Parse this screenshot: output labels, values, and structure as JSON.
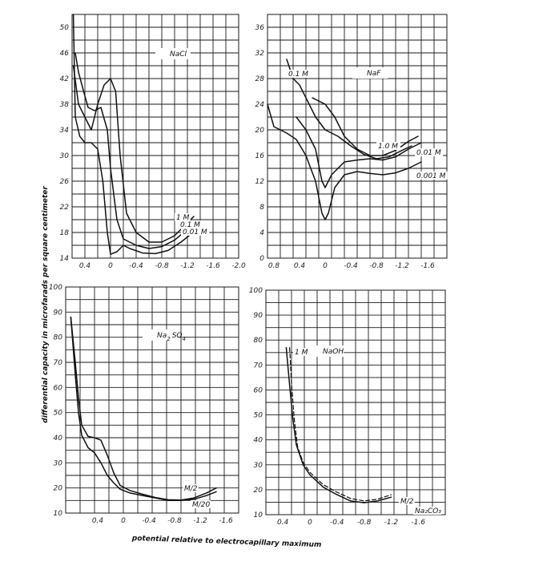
{
  "figure": {
    "ylabel": "differential capacity in microfarads per square centimeter",
    "xlabel": "potential relative to electrocapillary maximum"
  },
  "chart_data": [
    {
      "type": "line",
      "title": "NaCl",
      "xlim": [
        0.6,
        -2.0
      ],
      "ylim": [
        14,
        52
      ],
      "xticks": [
        0.4,
        0,
        -0.4,
        -0.8,
        -1.2,
        -1.6,
        -2.0
      ],
      "xtick_labels": [
        "0.4",
        "0",
        "-0.4",
        "-0.8",
        "-1.2",
        "-1.6",
        "-2.0"
      ],
      "yticks": [
        14,
        18,
        22,
        26,
        30,
        34,
        38,
        42,
        46,
        50
      ],
      "ytick_labels": [
        "14",
        "18",
        "22",
        "26",
        "30",
        "34",
        "38",
        "42",
        "46",
        "50"
      ],
      "series": [
        {
          "name": "1M",
          "points": [
            [
              0.58,
              44
            ],
            [
              0.5,
              38
            ],
            [
              0.4,
              36
            ],
            [
              0.3,
              34
            ],
            [
              0.2,
              38
            ],
            [
              0.1,
              41
            ],
            [
              0.0,
              42
            ],
            [
              -0.08,
              40
            ],
            [
              -0.15,
              30
            ],
            [
              -0.25,
              21
            ],
            [
              -0.4,
              18
            ],
            [
              -0.6,
              16.5
            ],
            [
              -0.8,
              16.5
            ],
            [
              -1.0,
              17.5
            ],
            [
              -1.2,
              19.5
            ],
            [
              -1.3,
              20.5
            ]
          ]
        },
        {
          "name": "0.1M",
          "points": [
            [
              0.55,
              46
            ],
            [
              0.5,
              43
            ],
            [
              0.42,
              40
            ],
            [
              0.35,
              37.5
            ],
            [
              0.25,
              37
            ],
            [
              0.15,
              37.5
            ],
            [
              0.05,
              34
            ],
            [
              0.0,
              28
            ],
            [
              -0.1,
              20
            ],
            [
              -0.2,
              17
            ],
            [
              -0.4,
              16
            ],
            [
              -0.6,
              15.5
            ],
            [
              -0.8,
              15.8
            ],
            [
              -1.0,
              16.8
            ],
            [
              -1.2,
              18.5
            ],
            [
              -1.35,
              19.5
            ]
          ]
        },
        {
          "name": "0.01M",
          "points": [
            [
              0.58,
              52
            ],
            [
              0.55,
              36
            ],
            [
              0.48,
              33
            ],
            [
              0.4,
              32
            ],
            [
              0.3,
              32
            ],
            [
              0.2,
              31
            ],
            [
              0.12,
              26
            ],
            [
              0.05,
              18
            ],
            [
              0.0,
              14.6
            ],
            [
              -0.1,
              15
            ],
            [
              -0.2,
              16
            ],
            [
              -0.3,
              15.5
            ],
            [
              -0.5,
              14.8
            ],
            [
              -0.7,
              14.7
            ],
            [
              -0.9,
              15.2
            ],
            [
              -1.1,
              16.5
            ],
            [
              -1.35,
              18.5
            ]
          ]
        }
      ]
    },
    {
      "type": "line",
      "title": "NaF",
      "xlim": [
        0.9,
        -1.9
      ],
      "ylim": [
        0,
        38
      ],
      "xticks": [
        0.8,
        0.4,
        0,
        -0.4,
        -0.8,
        -1.2,
        -1.6
      ],
      "xtick_labels": [
        "0.8",
        "0.4",
        "0",
        "-0.4",
        "-0.8",
        "-1.2",
        "-1.6"
      ],
      "yticks": [
        0,
        4,
        8,
        12,
        16,
        20,
        24,
        28,
        32,
        36
      ],
      "ytick_labels": [
        "0",
        "4",
        "8",
        "12",
        "16",
        "20",
        "24",
        "28",
        "32",
        "36"
      ],
      "series": [
        {
          "name": "0.1M",
          "points": [
            [
              0.6,
              31
            ],
            [
              0.5,
              28
            ],
            [
              0.4,
              27
            ],
            [
              0.3,
              25
            ],
            [
              0.15,
              22
            ],
            [
              0.0,
              20
            ],
            [
              -0.2,
              19
            ],
            [
              -0.4,
              17.5
            ],
            [
              -0.6,
              16.2
            ],
            [
              -0.8,
              15.5
            ],
            [
              -1.0,
              15.8
            ],
            [
              -1.2,
              16.8
            ],
            [
              -1.35,
              17.5
            ]
          ]
        },
        {
          "name": "1.0M",
          "points": [
            [
              0.2,
              25
            ],
            [
              0.0,
              24
            ],
            [
              -0.15,
              22
            ],
            [
              -0.3,
              19
            ],
            [
              -0.5,
              17
            ],
            [
              -0.7,
              16
            ],
            [
              -0.9,
              16
            ],
            [
              -1.1,
              16.8
            ],
            [
              -1.3,
              18.2
            ],
            [
              -1.45,
              19
            ]
          ]
        },
        {
          "name": "0.01M",
          "points": [
            [
              0.45,
              22
            ],
            [
              0.3,
              20
            ],
            [
              0.15,
              17
            ],
            [
              0.05,
              12
            ],
            [
              0.0,
              11
            ],
            [
              -0.1,
              13
            ],
            [
              -0.3,
              15
            ],
            [
              -0.5,
              15.3
            ],
            [
              -0.7,
              15.5
            ],
            [
              -0.9,
              15.3
            ],
            [
              -1.1,
              15.8
            ],
            [
              -1.3,
              17
            ],
            [
              -1.5,
              18
            ]
          ]
        },
        {
          "name": "0.001M",
          "points": [
            [
              0.9,
              24
            ],
            [
              0.8,
              20.5
            ],
            [
              0.6,
              19.5
            ],
            [
              0.45,
              18.5
            ],
            [
              0.3,
              16
            ],
            [
              0.15,
              12
            ],
            [
              0.05,
              7
            ],
            [
              0.0,
              6
            ],
            [
              -0.05,
              7
            ],
            [
              -0.15,
              11
            ],
            [
              -0.3,
              13
            ],
            [
              -0.5,
              13.5
            ],
            [
              -0.7,
              13.2
            ],
            [
              -0.9,
              13
            ],
            [
              -1.1,
              13.3
            ],
            [
              -1.3,
              14
            ],
            [
              -1.5,
              15
            ]
          ]
        }
      ]
    },
    {
      "type": "line",
      "title": "Na2SO4",
      "xlim": [
        0.9,
        -1.8
      ],
      "ylim": [
        10,
        100
      ],
      "xticks": [
        0.4,
        0,
        -0.4,
        -0.8,
        -1.2,
        -1.6
      ],
      "xtick_labels": [
        "0.4",
        "0",
        "-0.4",
        "-0.8",
        "-1.2",
        "-1.6"
      ],
      "yticks": [
        10,
        20,
        30,
        40,
        50,
        60,
        70,
        80,
        90,
        100
      ],
      "ytick_labels": [
        "10",
        "20",
        "30",
        "40",
        "50",
        "60",
        "70",
        "80",
        "90",
        "100"
      ],
      "series": [
        {
          "name": "M/2",
          "points": [
            [
              0.82,
              88
            ],
            [
              0.75,
              70
            ],
            [
              0.7,
              56
            ],
            [
              0.65,
              45
            ],
            [
              0.55,
              40.5
            ],
            [
              0.45,
              40
            ],
            [
              0.35,
              39
            ],
            [
              0.25,
              33
            ],
            [
              0.15,
              26
            ],
            [
              0.05,
              21
            ],
            [
              -0.1,
              19
            ],
            [
              -0.3,
              17.5
            ],
            [
              -0.5,
              16.2
            ],
            [
              -0.7,
              15.3
            ],
            [
              -0.9,
              15.2
            ],
            [
              -1.1,
              16
            ],
            [
              -1.3,
              18
            ],
            [
              -1.45,
              20
            ]
          ]
        },
        {
          "name": "M/20",
          "points": [
            [
              0.82,
              88
            ],
            [
              0.75,
              65
            ],
            [
              0.7,
              50
            ],
            [
              0.65,
              41
            ],
            [
              0.55,
              36
            ],
            [
              0.45,
              34
            ],
            [
              0.35,
              30
            ],
            [
              0.25,
              25
            ],
            [
              0.15,
              22
            ],
            [
              0.05,
              19.5
            ],
            [
              -0.1,
              18
            ],
            [
              -0.3,
              17
            ],
            [
              -0.5,
              16
            ],
            [
              -0.7,
              15
            ],
            [
              -0.9,
              15
            ],
            [
              -1.1,
              15.5
            ],
            [
              -1.3,
              17
            ],
            [
              -1.45,
              18.5
            ]
          ]
        }
      ]
    },
    {
      "type": "line",
      "title": "NaOH",
      "xlim": [
        0.65,
        -2.0
      ],
      "ylim": [
        10,
        100
      ],
      "xticks": [
        0.4,
        0,
        -0.4,
        -0.8,
        -1.2,
        -1.6
      ],
      "xtick_labels": [
        "0.4",
        "0",
        "-0.4",
        "-0.8",
        "-1.2",
        "-1.6"
      ],
      "yticks": [
        10,
        20,
        30,
        40,
        50,
        60,
        70,
        80,
        90,
        100
      ],
      "ytick_labels": [
        "10",
        "20",
        "30",
        "40",
        "50",
        "60",
        "70",
        "80",
        "90",
        "100"
      ],
      "series": [
        {
          "name": "1M",
          "style": "solid",
          "points": [
            [
              0.35,
              77
            ],
            [
              0.3,
              62
            ],
            [
              0.25,
              48
            ],
            [
              0.2,
              38
            ],
            [
              0.1,
              30
            ],
            [
              0.0,
              26
            ],
            [
              -0.2,
              21
            ],
            [
              -0.4,
              18
            ],
            [
              -0.6,
              15.5
            ],
            [
              -0.8,
              14.8
            ],
            [
              -1.0,
              15.5
            ],
            [
              -1.2,
              17
            ]
          ]
        },
        {
          "name": "M/2",
          "style": "dashed",
          "points": [
            [
              0.3,
              77
            ],
            [
              0.27,
              62
            ],
            [
              0.23,
              48
            ],
            [
              0.18,
              37
            ],
            [
              0.1,
              31
            ],
            [
              0.0,
              27
            ],
            [
              -0.2,
              22
            ],
            [
              -0.4,
              19
            ],
            [
              -0.6,
              16.5
            ],
            [
              -0.8,
              15.5
            ],
            [
              -1.0,
              16.2
            ],
            [
              -1.2,
              18
            ]
          ]
        }
      ],
      "extra_labels": [
        "Na2CO3"
      ]
    }
  ]
}
